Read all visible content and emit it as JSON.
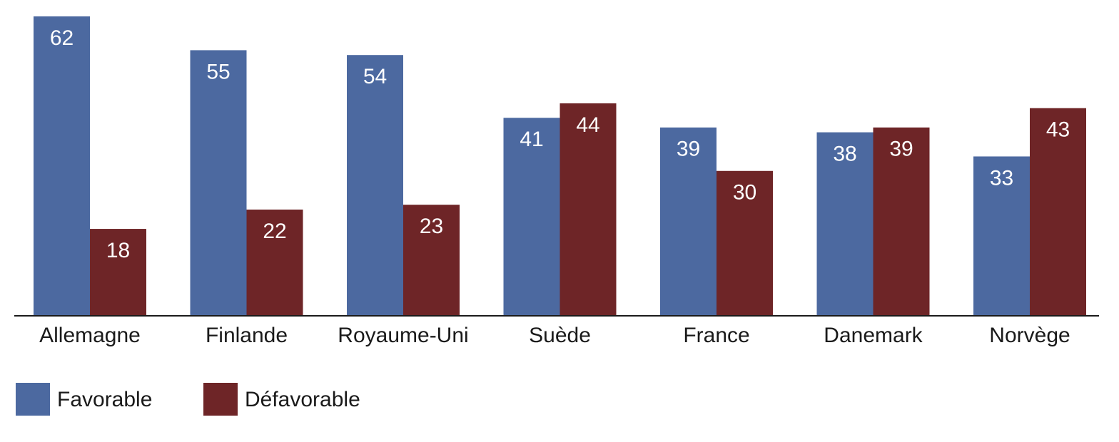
{
  "chart_data": {
    "type": "bar",
    "categories": [
      "Allemagne",
      "Finlande",
      "Royaume-Uni",
      "Suède",
      "France",
      "Danemark",
      "Norvège"
    ],
    "series": [
      {
        "name": "Favorable",
        "color": "#4c69a0",
        "values": [
          62,
          55,
          54,
          41,
          39,
          38,
          33
        ]
      },
      {
        "name": "Défavorable",
        "color": "#6e2527",
        "values": [
          18,
          22,
          23,
          44,
          30,
          39,
          43
        ]
      }
    ]
  }
}
